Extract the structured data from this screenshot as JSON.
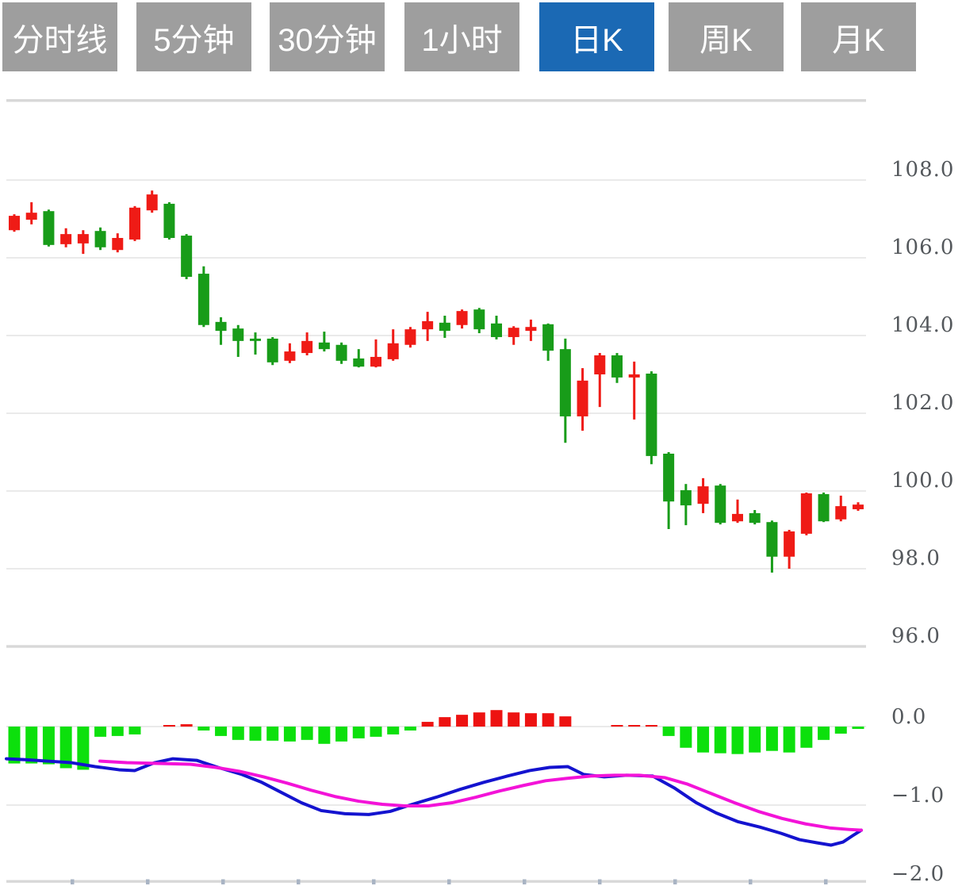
{
  "tabs": {
    "items": [
      {
        "label": "分时线"
      },
      {
        "label": "5分钟"
      },
      {
        "label": "30分钟"
      },
      {
        "label": "1小时"
      },
      {
        "label": "日K"
      },
      {
        "label": "周K"
      },
      {
        "label": "月K"
      }
    ],
    "active_index": 4,
    "active_color": "#1b69b4",
    "inactive_color": "#9e9e9e",
    "text_color": "#ffffff"
  },
  "chart_data": {
    "type": "candlestick_macd",
    "title": "",
    "legend": "none",
    "grid": "on",
    "colors": {
      "grid": "#e3e3e3",
      "border": "#d8d8d8",
      "tick": "#a9b4c4",
      "label_text": "#54585c"
    },
    "x_axis_ticks": [
      91,
      186,
      281,
      376,
      471,
      566,
      661,
      756,
      851,
      946,
      1041
    ],
    "price_panel": {
      "ylim": [
        95.6,
        110.1
      ],
      "gridlines": [
        108,
        106,
        104,
        102,
        100,
        98
      ],
      "axis_labels": [
        {
          "text": "108.0",
          "value": 108.0
        },
        {
          "text": "106.0",
          "value": 106.0
        },
        {
          "text": "104.0",
          "value": 104.0
        },
        {
          "text": "102.0",
          "value": 102.0
        },
        {
          "text": "100.0",
          "value": 100.0
        },
        {
          "text": "98.0",
          "value": 98.0
        },
        {
          "text": "96.0",
          "value": 96.0
        }
      ],
      "up_color": "#ef1b16",
      "down_color": "#189c19",
      "candles_format": [
        "open",
        "high",
        "low",
        "close"
      ],
      "candles": [
        [
          106.71,
          107.12,
          106.67,
          107.08
        ],
        [
          106.98,
          107.43,
          106.86,
          107.16
        ],
        [
          107.2,
          107.24,
          106.29,
          106.33
        ],
        [
          106.35,
          106.76,
          106.27,
          106.61
        ],
        [
          106.37,
          106.71,
          106.1,
          106.61
        ],
        [
          106.69,
          106.78,
          106.2,
          106.27
        ],
        [
          106.2,
          106.63,
          106.14,
          106.51
        ],
        [
          106.47,
          107.33,
          106.43,
          107.29
        ],
        [
          107.22,
          107.73,
          107.16,
          107.63
        ],
        [
          107.39,
          107.43,
          106.47,
          106.51
        ],
        [
          106.57,
          106.61,
          105.45,
          105.51
        ],
        [
          105.59,
          105.78,
          104.22,
          104.27
        ],
        [
          104.35,
          104.47,
          103.76,
          104.12
        ],
        [
          104.18,
          104.27,
          103.45,
          103.86
        ],
        [
          103.92,
          104.08,
          103.51,
          103.86
        ],
        [
          103.92,
          103.96,
          103.24,
          103.31
        ],
        [
          103.35,
          103.8,
          103.29,
          103.59
        ],
        [
          103.55,
          104.08,
          103.49,
          103.86
        ],
        [
          103.82,
          104.1,
          103.59,
          103.65
        ],
        [
          103.76,
          103.82,
          103.27,
          103.35
        ],
        [
          103.41,
          103.65,
          103.18,
          103.2
        ],
        [
          103.2,
          103.9,
          103.18,
          103.45
        ],
        [
          103.39,
          104.16,
          103.35,
          103.8
        ],
        [
          103.76,
          104.22,
          103.69,
          104.16
        ],
        [
          104.16,
          104.61,
          103.86,
          104.37
        ],
        [
          104.33,
          104.51,
          103.94,
          104.12
        ],
        [
          104.27,
          104.67,
          104.18,
          104.63
        ],
        [
          104.67,
          104.71,
          104.06,
          104.16
        ],
        [
          104.31,
          104.51,
          103.9,
          103.96
        ],
        [
          103.96,
          104.24,
          103.76,
          104.2
        ],
        [
          104.12,
          104.41,
          103.86,
          104.22
        ],
        [
          104.29,
          104.31,
          103.35,
          103.61
        ],
        [
          103.65,
          103.92,
          101.24,
          101.92
        ],
        [
          101.92,
          103.16,
          101.55,
          102.84
        ],
        [
          103.0,
          103.55,
          102.16,
          103.49
        ],
        [
          103.49,
          103.55,
          102.78,
          102.92
        ],
        [
          102.92,
          103.33,
          101.84,
          103.0
        ],
        [
          103.02,
          103.08,
          100.69,
          100.9
        ],
        [
          100.96,
          101.0,
          99.02,
          99.73
        ],
        [
          100.02,
          100.18,
          99.12,
          99.63
        ],
        [
          99.67,
          100.33,
          99.43,
          100.12
        ],
        [
          100.14,
          100.18,
          99.14,
          99.18
        ],
        [
          99.22,
          99.78,
          99.18,
          99.41
        ],
        [
          99.43,
          99.51,
          99.14,
          99.18
        ],
        [
          99.2,
          99.24,
          97.9,
          98.31
        ],
        [
          98.31,
          99.0,
          98.0,
          98.96
        ],
        [
          98.9,
          99.96,
          98.86,
          99.94
        ],
        [
          99.92,
          99.96,
          99.2,
          99.22
        ],
        [
          99.27,
          99.88,
          99.22,
          99.61
        ],
        [
          99.53,
          99.71,
          99.49,
          99.65
        ]
      ]
    },
    "macd_panel": {
      "ylim": [
        -2.0,
        0.3
      ],
      "gridlines": [
        0.0,
        -1.0
      ],
      "axis_labels": [
        {
          "text": "0.0",
          "value": 0.0
        },
        {
          "text": "-1.0",
          "value": -1.0
        },
        {
          "text": "-2.0",
          "value": -2.0
        }
      ],
      "hist_up_color": "#ed1211",
      "hist_down_color": "#0ce00c",
      "histogram": [
        -0.47,
        -0.47,
        -0.48,
        -0.53,
        -0.55,
        -0.13,
        -0.12,
        -0.1,
        0.0,
        0.02,
        0.03,
        -0.05,
        -0.12,
        -0.17,
        -0.18,
        -0.18,
        -0.19,
        -0.17,
        -0.22,
        -0.19,
        -0.15,
        -0.13,
        -0.1,
        -0.05,
        0.06,
        0.12,
        0.15,
        0.18,
        0.21,
        0.18,
        0.17,
        0.17,
        0.13,
        0.0,
        0.0,
        0.02,
        0.02,
        0.02,
        -0.12,
        -0.27,
        -0.33,
        -0.34,
        -0.35,
        -0.33,
        -0.31,
        -0.33,
        -0.27,
        -0.17,
        -0.09,
        -0.03
      ],
      "dif_line": {
        "name": "DIF",
        "color": "#1413cf",
        "points": [
          [
            8,
            -0.41
          ],
          [
            30,
            -0.42
          ],
          [
            60,
            -0.44
          ],
          [
            90,
            -0.46
          ],
          [
            120,
            -0.51
          ],
          [
            150,
            -0.55
          ],
          [
            170,
            -0.56
          ],
          [
            195,
            -0.46
          ],
          [
            218,
            -0.41
          ],
          [
            248,
            -0.43
          ],
          [
            275,
            -0.52
          ],
          [
            305,
            -0.61
          ],
          [
            330,
            -0.71
          ],
          [
            355,
            -0.84
          ],
          [
            380,
            -0.97
          ],
          [
            405,
            -1.07
          ],
          [
            435,
            -1.11
          ],
          [
            465,
            -1.12
          ],
          [
            492,
            -1.08
          ],
          [
            520,
            -0.99
          ],
          [
            550,
            -0.9
          ],
          [
            580,
            -0.8
          ],
          [
            610,
            -0.71
          ],
          [
            640,
            -0.63
          ],
          [
            668,
            -0.56
          ],
          [
            693,
            -0.52
          ],
          [
            716,
            -0.51
          ],
          [
            736,
            -0.61
          ],
          [
            762,
            -0.64
          ],
          [
            790,
            -0.62
          ],
          [
            823,
            -0.63
          ],
          [
            850,
            -0.78
          ],
          [
            878,
            -0.97
          ],
          [
            903,
            -1.1
          ],
          [
            930,
            -1.21
          ],
          [
            958,
            -1.28
          ],
          [
            985,
            -1.36
          ],
          [
            1008,
            -1.44
          ],
          [
            1030,
            -1.48
          ],
          [
            1048,
            -1.51
          ],
          [
            1063,
            -1.47
          ],
          [
            1075,
            -1.39
          ],
          [
            1086,
            -1.32
          ]
        ]
      },
      "dea_line": {
        "name": "DEA",
        "color": "#f313d8",
        "points": [
          [
            126,
            -0.44
          ],
          [
            160,
            -0.46
          ],
          [
            200,
            -0.47
          ],
          [
            240,
            -0.48
          ],
          [
            272,
            -0.52
          ],
          [
            302,
            -0.57
          ],
          [
            332,
            -0.64
          ],
          [
            362,
            -0.72
          ],
          [
            392,
            -0.81
          ],
          [
            422,
            -0.89
          ],
          [
            452,
            -0.95
          ],
          [
            482,
            -0.99
          ],
          [
            510,
            -1.01
          ],
          [
            540,
            -1.01
          ],
          [
            570,
            -0.97
          ],
          [
            600,
            -0.9
          ],
          [
            630,
            -0.82
          ],
          [
            660,
            -0.75
          ],
          [
            688,
            -0.69
          ],
          [
            714,
            -0.66
          ],
          [
            745,
            -0.63
          ],
          [
            775,
            -0.62
          ],
          [
            806,
            -0.62
          ],
          [
            838,
            -0.65
          ],
          [
            866,
            -0.73
          ],
          [
            896,
            -0.85
          ],
          [
            926,
            -0.97
          ],
          [
            956,
            -1.08
          ],
          [
            986,
            -1.17
          ],
          [
            1016,
            -1.24
          ],
          [
            1046,
            -1.29
          ],
          [
            1070,
            -1.31
          ],
          [
            1086,
            -1.32
          ]
        ]
      }
    }
  }
}
